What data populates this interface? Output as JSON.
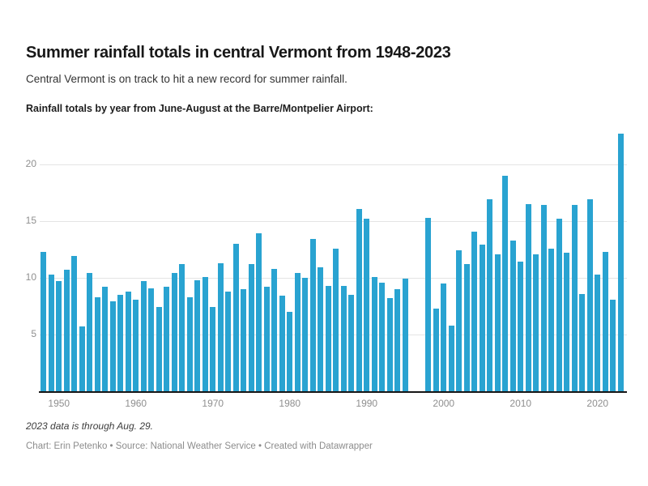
{
  "header": {
    "title": "Summer rainfall totals in central Vermont from 1948-2023",
    "subtitle": "Central Vermont is on track to hit a new record for summer rainfall.",
    "description": "Rainfall totals by year from June-August at the Barre/Montpelier Airport:"
  },
  "chart_data": {
    "type": "bar",
    "title": "Summer rainfall totals in central Vermont from 1948-2023",
    "xlabel": "",
    "ylabel": "",
    "x": [
      "1948",
      "1949",
      "1950",
      "1951",
      "1952",
      "1953",
      "1954",
      "1955",
      "1956",
      "1957",
      "1958",
      "1959",
      "1960",
      "1961",
      "1962",
      "1963",
      "1964",
      "1965",
      "1966",
      "1967",
      "1968",
      "1969",
      "1970",
      "1971",
      "1972",
      "1973",
      "1974",
      "1975",
      "1976",
      "1977",
      "1978",
      "1979",
      "1980",
      "1981",
      "1982",
      "1983",
      "1984",
      "1985",
      "1986",
      "1987",
      "1988",
      "1989",
      "1990",
      "1991",
      "1992",
      "1993",
      "1994",
      "1995",
      "1996",
      "1997",
      "1998",
      "1999",
      "2000",
      "2001",
      "2002",
      "2003",
      "2004",
      "2005",
      "2006",
      "2007",
      "2008",
      "2009",
      "2010",
      "2011",
      "2012",
      "2013",
      "2014",
      "2015",
      "2016",
      "2017",
      "2018",
      "2019",
      "2020",
      "2021",
      "2022",
      "2023"
    ],
    "values": [
      12.3,
      10.3,
      9.7,
      10.7,
      11.9,
      5.7,
      10.4,
      8.3,
      9.2,
      7.9,
      8.5,
      8.8,
      8.1,
      9.7,
      9.1,
      7.4,
      9.2,
      10.4,
      11.2,
      8.3,
      9.8,
      10.1,
      7.4,
      11.3,
      8.8,
      13.0,
      9.0,
      11.2,
      13.9,
      9.2,
      10.8,
      8.4,
      7.0,
      10.4,
      10.0,
      13.4,
      10.9,
      9.3,
      12.6,
      9.3,
      8.5,
      16.1,
      15.2,
      10.1,
      9.6,
      8.2,
      9.0,
      9.9,
      null,
      null,
      15.3,
      7.3,
      9.5,
      5.8,
      12.4,
      11.2,
      14.1,
      12.9,
      16.9,
      12.1,
      19.0,
      13.3,
      11.4,
      16.5,
      12.1,
      16.4,
      12.6,
      15.2,
      12.2,
      16.4,
      8.6,
      16.9,
      10.3,
      12.3,
      8.1,
      22.7
    ],
    "missing_years": [
      "1996",
      "1997"
    ],
    "x_tick_labels": [
      "1950",
      "1960",
      "1970",
      "1980",
      "1990",
      "2000",
      "2010",
      "2020"
    ],
    "y_ticks": [
      5,
      10,
      15,
      20
    ],
    "ylim": [
      0,
      23.2
    ],
    "grid": "horizontal-only",
    "legend": "none",
    "bar_color": "#29a3d1",
    "axis_text_color": "#8f8f8f",
    "gridline_color": "#e4e4e4",
    "baseline_color": "#161616"
  },
  "footer": {
    "note": "2023 data is through Aug. 29.",
    "credits": "Chart: Erin Petenko • Source: National Weather Service • Created with Datawrapper"
  }
}
